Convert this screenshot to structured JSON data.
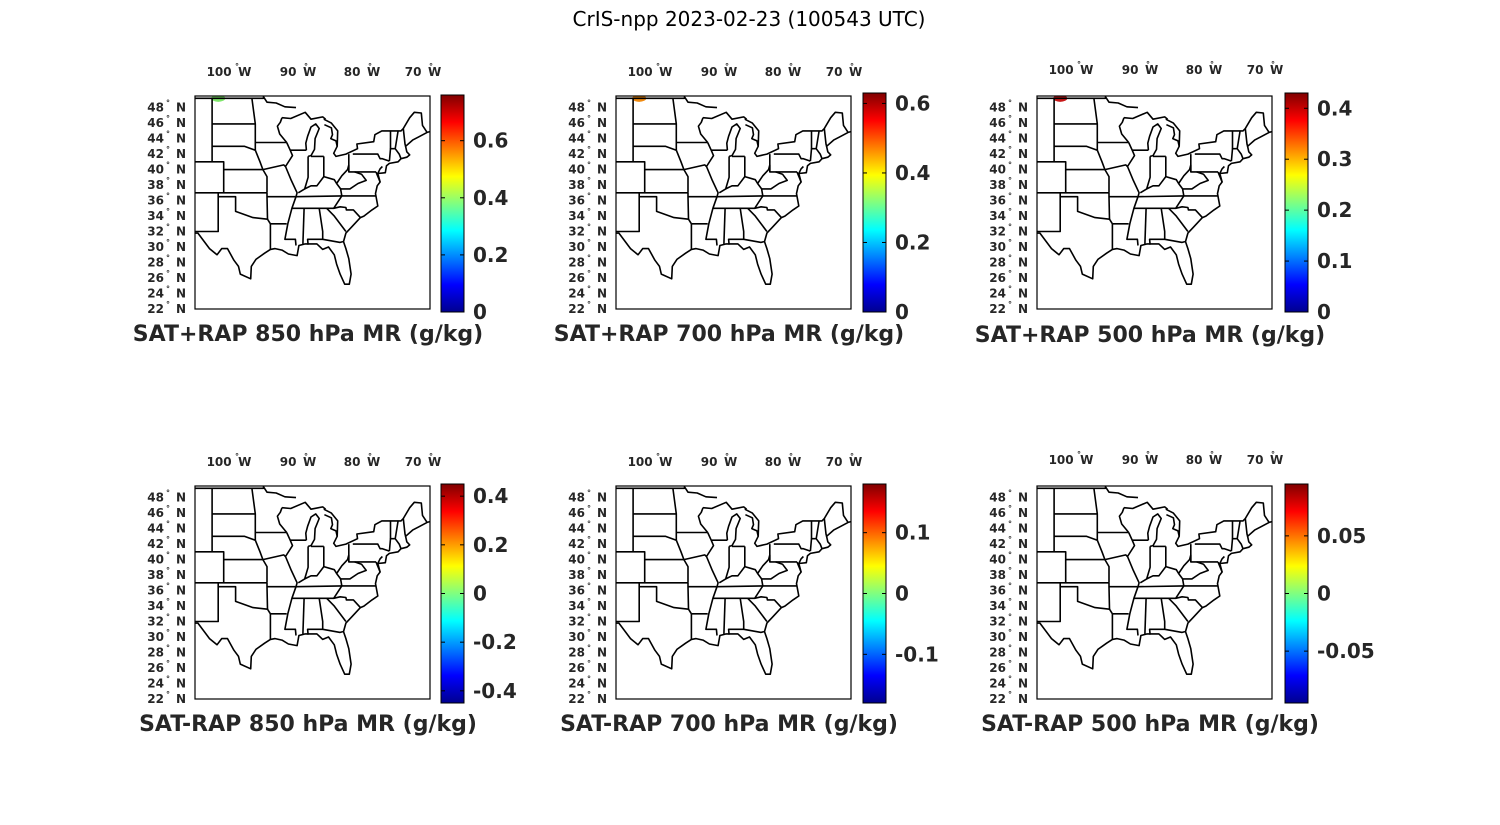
{
  "title": "CrIS-npp 2023-02-23 (100543 UTC)",
  "lon_ticks": [
    {
      "value": "100",
      "hemi": "W"
    },
    {
      "value": "90",
      "hemi": "W"
    },
    {
      "value": "80",
      "hemi": "W"
    },
    {
      "value": "70",
      "hemi": "W"
    }
  ],
  "lat_ticks": [
    {
      "value": "48",
      "hemi": "N"
    },
    {
      "value": "46",
      "hemi": "N"
    },
    {
      "value": "44",
      "hemi": "N"
    },
    {
      "value": "42",
      "hemi": "N"
    },
    {
      "value": "40",
      "hemi": "N"
    },
    {
      "value": "38",
      "hemi": "N"
    },
    {
      "value": "36",
      "hemi": "N"
    },
    {
      "value": "34",
      "hemi": "N"
    },
    {
      "value": "32",
      "hemi": "N"
    },
    {
      "value": "30",
      "hemi": "N"
    },
    {
      "value": "28",
      "hemi": "N"
    },
    {
      "value": "26",
      "hemi": "N"
    },
    {
      "value": "24",
      "hemi": "N"
    },
    {
      "value": "22",
      "hemi": "N"
    }
  ],
  "degree_symbol": "°",
  "colormap": [
    "#00008f",
    "#0000ff",
    "#0080ff",
    "#00ffff",
    "#80ff80",
    "#ffff00",
    "#ff8000",
    "#ff0000",
    "#800000"
  ],
  "map_stroke_color": "#000000",
  "panels": [
    {
      "label": "SAT+RAP 850 hPa MR (g/kg)",
      "colorbar": {
        "range": [
          0,
          0.76
        ],
        "ticks": [
          "0",
          "0.2",
          "0.4",
          "0.6"
        ],
        "tick_values": [
          0,
          0.2,
          0.4,
          0.6
        ]
      },
      "data_blob": {
        "lon": -103,
        "lat": 49.2,
        "color": "#7ee66a"
      }
    },
    {
      "label": "SAT+RAP 700 hPa MR (g/kg)",
      "colorbar": {
        "range": [
          0,
          0.63
        ],
        "ticks": [
          "0",
          "0.2",
          "0.4",
          "0.6"
        ],
        "tick_values": [
          0,
          0.2,
          0.4,
          0.6
        ]
      },
      "data_blob": {
        "lon": -103,
        "lat": 49.2,
        "color": "#f08a10"
      }
    },
    {
      "label": "SAT+RAP 500 hPa MR (g/kg)",
      "colorbar": {
        "range": [
          0,
          0.43
        ],
        "ticks": [
          "0",
          "0.1",
          "0.2",
          "0.3",
          "0.4"
        ],
        "tick_values": [
          0,
          0.1,
          0.2,
          0.3,
          0.4
        ]
      },
      "data_blob": {
        "lon": -103,
        "lat": 49.2,
        "color": "#c81818"
      }
    },
    {
      "label": "SAT-RAP 850 hPa MR (g/kg)",
      "colorbar": {
        "range": [
          -0.45,
          0.45
        ],
        "ticks": [
          "-0.4",
          "-0.2",
          "0",
          "0.2",
          "0.4"
        ],
        "tick_values": [
          -0.4,
          -0.2,
          0,
          0.2,
          0.4
        ]
      },
      "data_blob": null
    },
    {
      "label": "SAT-RAP 700 hPa MR (g/kg)",
      "colorbar": {
        "range": [
          -0.18,
          0.18
        ],
        "ticks": [
          "-0.1",
          "0",
          "0.1"
        ],
        "tick_values": [
          -0.1,
          0,
          0.1
        ]
      },
      "data_blob": null
    },
    {
      "label": "SAT-RAP 500 hPa MR (g/kg)",
      "colorbar": {
        "range": [
          -0.095,
          0.095
        ],
        "ticks": [
          "-0.05",
          "0",
          "0.05"
        ],
        "tick_values": [
          -0.05,
          0,
          0.05
        ]
      },
      "data_blob": null
    }
  ]
}
